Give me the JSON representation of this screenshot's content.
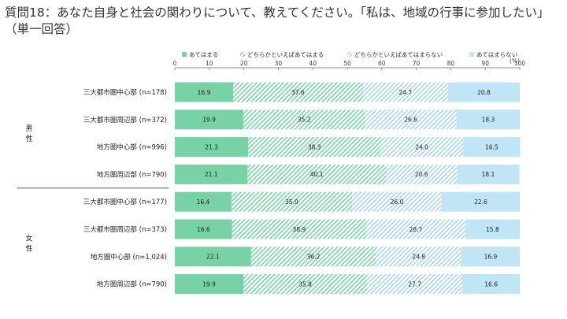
{
  "title": "質問18：あなた自身と社会の関わりについて、教えてください。「私は、地域の行事に参加したい」 （単一回答）",
  "chart_data": {
    "type": "bar",
    "orientation": "horizontal",
    "stacked": true,
    "unit": "(%)",
    "xlim": [
      0,
      100
    ],
    "x_ticks": [
      "0",
      "10",
      "20",
      "30",
      "40",
      "50",
      "60",
      "70",
      "80",
      "90",
      "100"
    ],
    "legend_position": "top",
    "groups": [
      {
        "label": "男性",
        "chars": [
          "男",
          "性"
        ],
        "categories": [
          0,
          1,
          2,
          3
        ]
      },
      {
        "label": "女性",
        "chars": [
          "女",
          "性"
        ],
        "categories": [
          4,
          5,
          6,
          7
        ]
      }
    ],
    "categories": [
      "三大都市圏中心部 (n=178)",
      "三大都市圏周辺部 (n=372)",
      "地方圏中心部 (n=996)",
      "地方圏周辺部 (n=790)",
      "三大都市圏中心部 (n=177)",
      "三大都市圏周辺部 (n=373)",
      "地方圏中心部 (n=1,024)",
      "地方圏周辺部 (n=790)"
    ],
    "series": [
      {
        "name": "あてはまる",
        "color": "#77d2a6",
        "pattern": "solid",
        "values": [
          16.9,
          19.9,
          21.3,
          21.1,
          16.4,
          16.6,
          22.1,
          19.9
        ]
      },
      {
        "name": "どちらかといえばあてはまる",
        "color": "#77d2a6",
        "pattern": "hatch-dense",
        "values": [
          37.6,
          35.2,
          38.3,
          40.1,
          35.0,
          38.9,
          36.2,
          35.8
        ]
      },
      {
        "name": "どちらかといえばあてはまらない",
        "color": "#9fd3ea",
        "pattern": "hatch-light",
        "values": [
          24.7,
          26.6,
          24.0,
          20.6,
          26.0,
          28.7,
          24.8,
          27.7
        ]
      },
      {
        "name": "あてはまらない",
        "color": "#bfe5f7",
        "pattern": "solid",
        "values": [
          20.8,
          18.3,
          16.5,
          18.1,
          22.6,
          15.8,
          16.9,
          16.6
        ]
      }
    ]
  }
}
